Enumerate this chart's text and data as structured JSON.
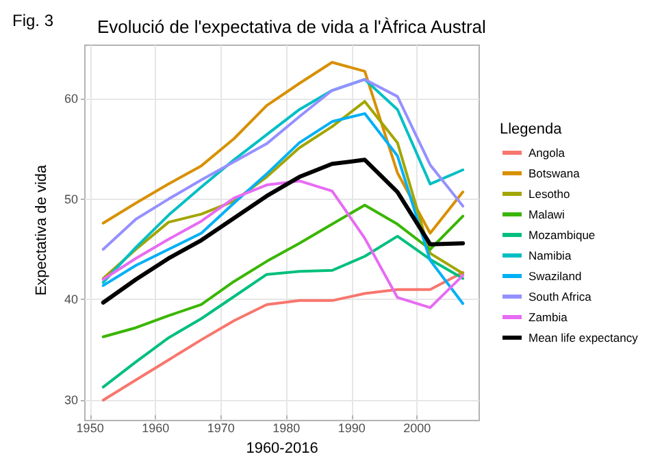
{
  "chart_data": {
    "type": "line",
    "title": "Evolució de l'expectativa de vida a l'Àfrica Austral",
    "xlabel": "1960-2016",
    "ylabel": "Expectativa de vida",
    "legend_title": "Llegenda",
    "annotations": [
      "Fig. 3"
    ],
    "x": [
      1952,
      1957,
      1962,
      1967,
      1972,
      1977,
      1982,
      1987,
      1992,
      1997,
      2002,
      2007
    ],
    "series": [
      {
        "name": "Angola",
        "color": "#f8766d",
        "values": [
          30.0,
          32.0,
          34.0,
          36.0,
          37.9,
          39.5,
          39.9,
          39.9,
          40.6,
          41.0,
          41.0,
          42.7
        ]
      },
      {
        "name": "Botswana",
        "color": "#d89000",
        "values": [
          47.6,
          49.6,
          51.5,
          53.3,
          56.0,
          59.3,
          61.5,
          63.6,
          62.7,
          52.6,
          46.6,
          50.7
        ]
      },
      {
        "name": "Lesotho",
        "color": "#a3a500",
        "values": [
          42.1,
          45.0,
          47.7,
          48.5,
          49.8,
          52.2,
          55.1,
          57.2,
          59.7,
          55.6,
          44.6,
          42.6
        ]
      },
      {
        "name": "Malawi",
        "color": "#39b600",
        "values": [
          36.3,
          37.2,
          38.4,
          39.5,
          41.8,
          43.8,
          45.6,
          47.5,
          49.4,
          47.5,
          45.0,
          48.3
        ]
      },
      {
        "name": "Mozambique",
        "color": "#00bf7d",
        "values": [
          31.3,
          33.8,
          36.2,
          38.1,
          40.3,
          42.5,
          42.8,
          42.9,
          44.3,
          46.3,
          44.0,
          42.1
        ]
      },
      {
        "name": "Namibia",
        "color": "#00bfc4",
        "values": [
          41.7,
          45.2,
          48.4,
          51.2,
          53.9,
          56.4,
          58.9,
          60.8,
          61.9,
          58.9,
          51.5,
          52.9
        ]
      },
      {
        "name": "Swaziland",
        "color": "#00b0f6",
        "values": [
          41.4,
          43.4,
          45.0,
          46.6,
          49.6,
          52.5,
          55.6,
          57.7,
          58.5,
          54.3,
          43.9,
          39.6
        ]
      },
      {
        "name": "South Africa",
        "color": "#9590ff",
        "values": [
          45.0,
          48.0,
          50.0,
          51.9,
          53.7,
          55.5,
          58.2,
          60.8,
          61.9,
          60.2,
          53.4,
          49.3
        ]
      },
      {
        "name": "Zambia",
        "color": "#e76bf3",
        "values": [
          42.0,
          44.1,
          46.0,
          47.8,
          50.1,
          51.4,
          51.8,
          50.8,
          46.1,
          40.2,
          39.2,
          42.4
        ]
      },
      {
        "name": "Mean life expectancy",
        "color": "#000000",
        "values": [
          39.7,
          42.0,
          44.1,
          45.9,
          48.1,
          50.3,
          52.2,
          53.5,
          53.9,
          50.7,
          45.5,
          45.6
        ]
      }
    ],
    "xlim": [
      1949.2,
      2009.5
    ],
    "xticks": [
      1950,
      1960,
      1970,
      1980,
      1990,
      2000
    ],
    "ylim": [
      28.5,
      65.3
    ],
    "yticks": [
      30,
      40,
      50,
      60
    ],
    "grid": true,
    "legend": "right",
    "marker": "none",
    "line_style": "solid"
  }
}
